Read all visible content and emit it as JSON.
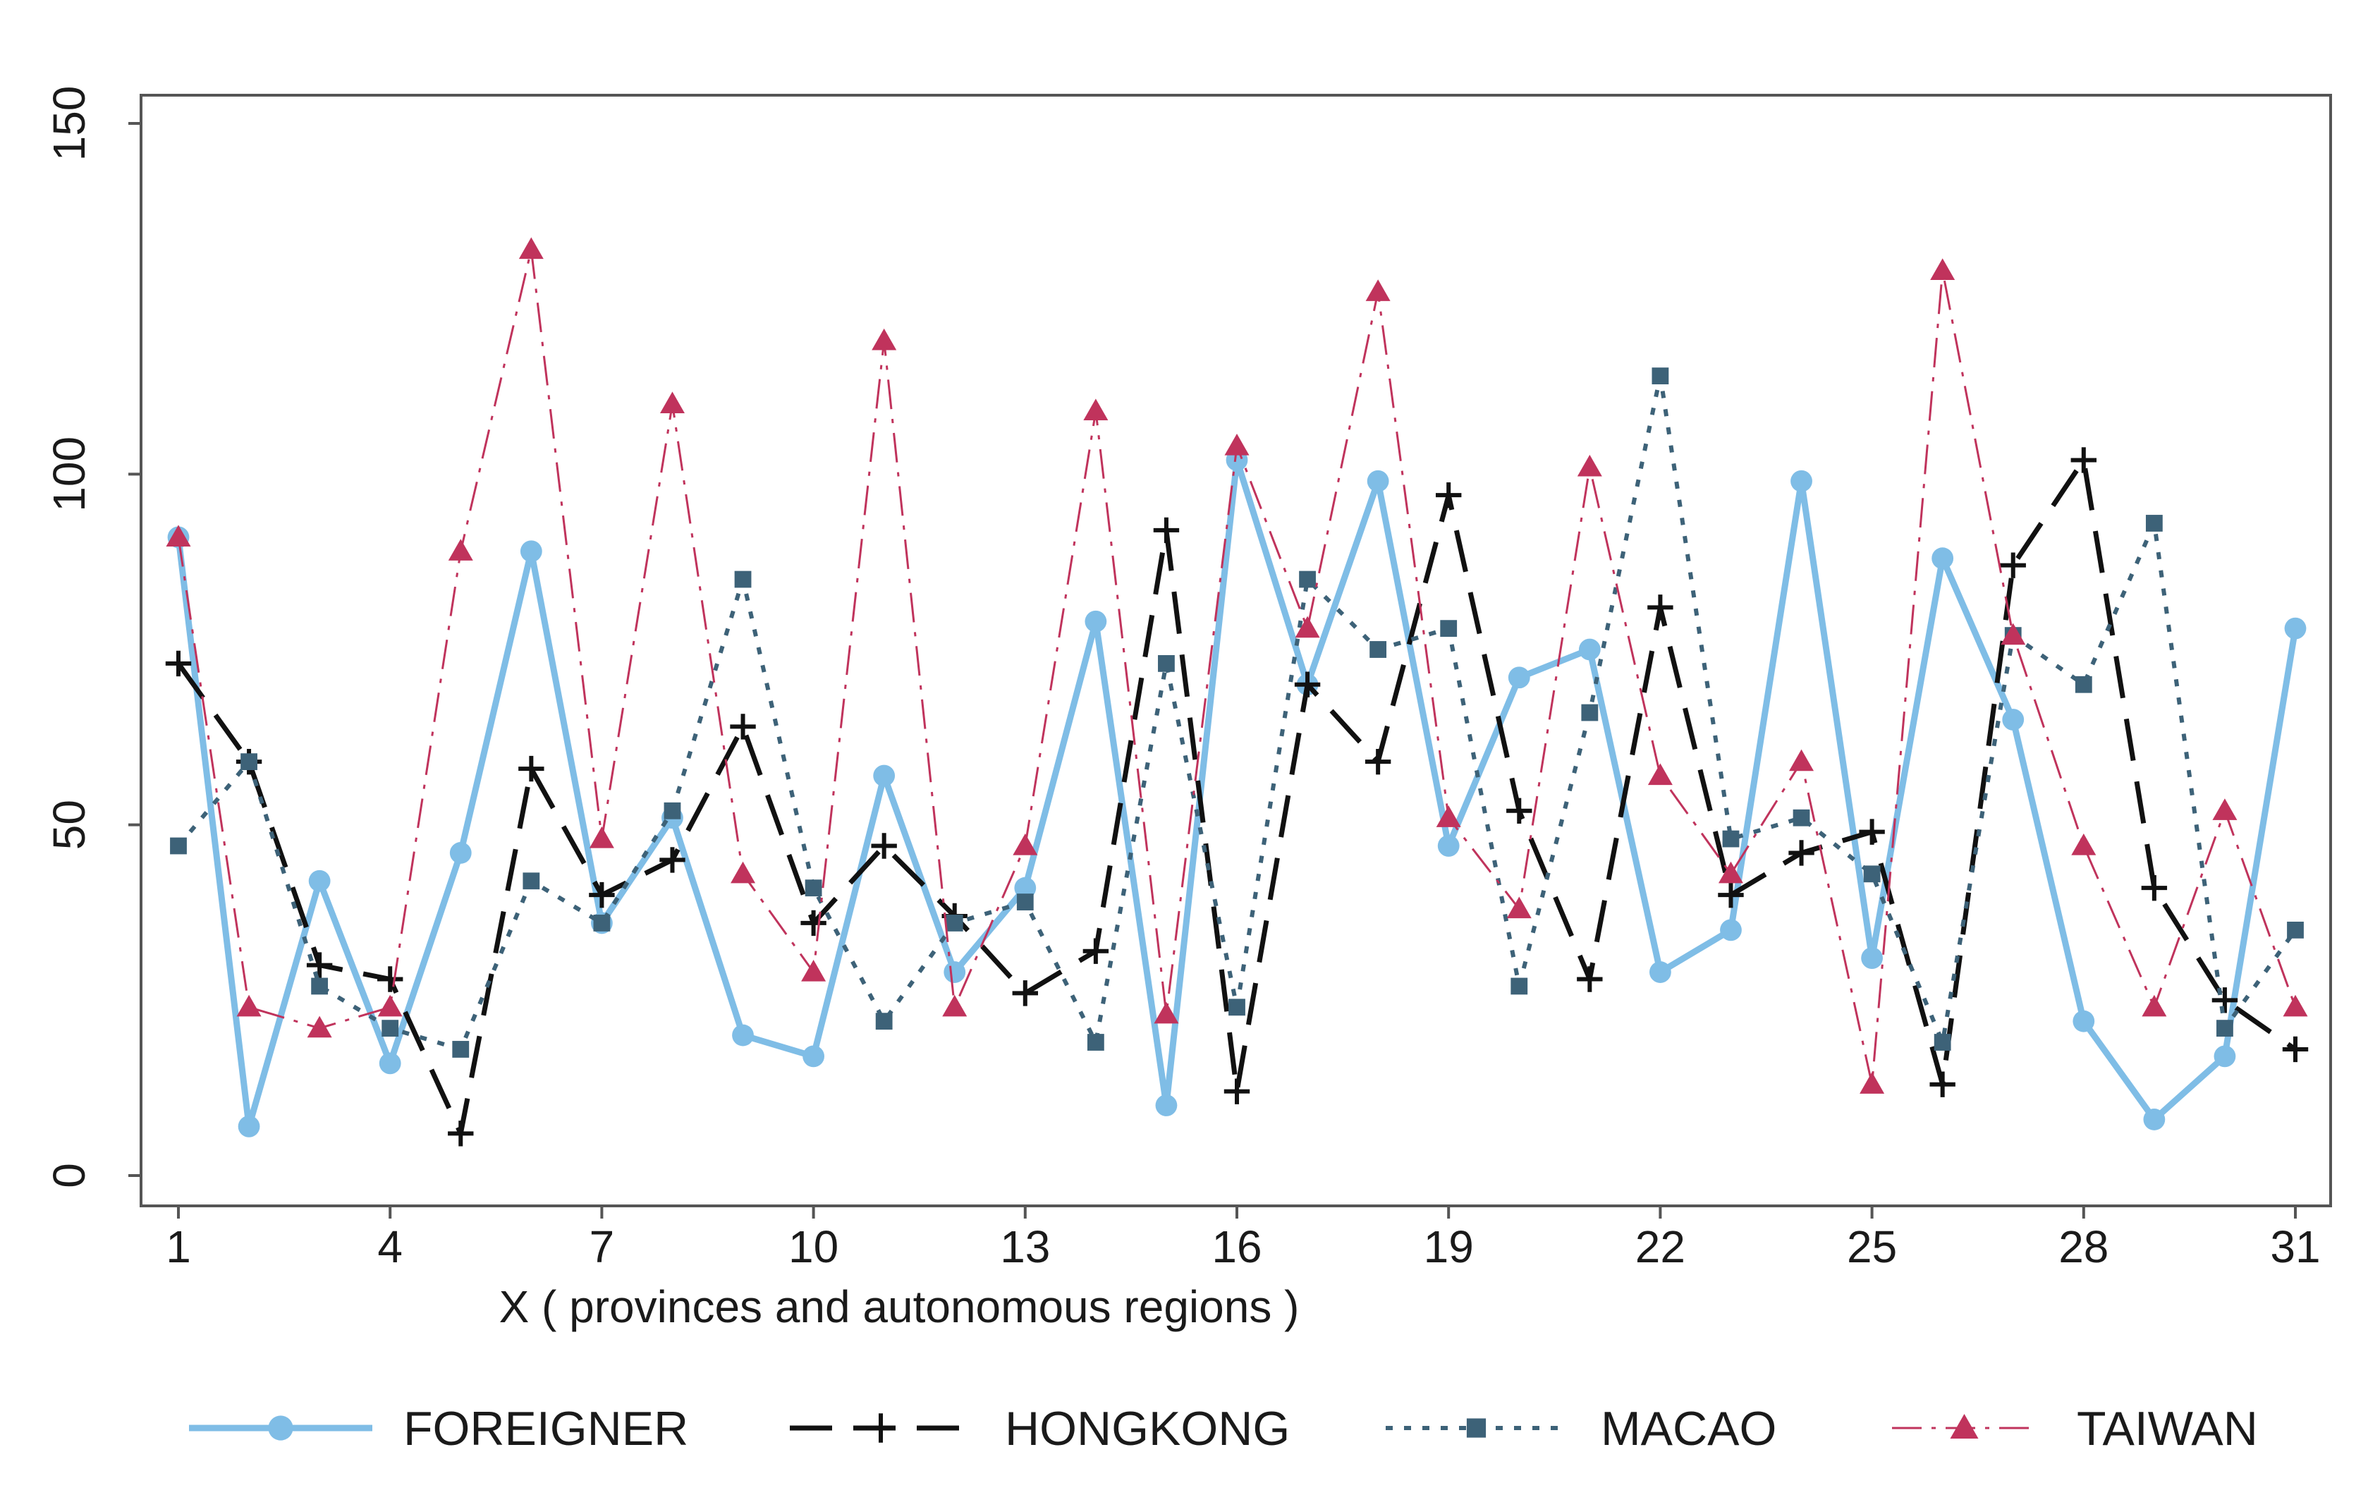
{
  "chart_data": {
    "type": "line",
    "title": "",
    "xlabel": "X ( provinces and autonomous regions )",
    "ylabel": "",
    "xlim": [
      1,
      31
    ],
    "ylim": [
      0,
      150
    ],
    "xticks": [
      1,
      4,
      7,
      10,
      13,
      16,
      19,
      22,
      25,
      28,
      31
    ],
    "yticks": [
      0,
      50,
      100,
      150
    ],
    "x": [
      1,
      2,
      3,
      4,
      5,
      6,
      7,
      8,
      9,
      10,
      11,
      12,
      13,
      14,
      15,
      16,
      17,
      18,
      19,
      20,
      21,
      22,
      23,
      24,
      25,
      26,
      27,
      28,
      29,
      30,
      31
    ],
    "legend_position": "bottom",
    "series": [
      {
        "name": "FOREIGNER",
        "color": "#7fbde6",
        "marker": "circle",
        "line_style": "solid",
        "values": [
          91,
          7,
          42,
          16,
          46,
          89,
          36,
          51,
          20,
          17,
          57,
          29,
          41,
          79,
          10,
          102,
          70,
          99,
          47,
          71,
          75,
          29,
          35,
          99,
          31,
          88,
          65,
          22,
          8,
          17,
          78
        ]
      },
      {
        "name": "HONGKONG",
        "color": "#111111",
        "marker": "plus",
        "line_style": "dashed",
        "values": [
          73,
          59,
          30,
          28,
          6,
          58,
          40,
          45,
          64,
          36,
          47,
          37,
          26,
          32,
          92,
          12,
          70,
          59,
          97,
          52,
          28,
          81,
          40,
          46,
          49,
          13,
          87,
          102,
          41,
          25,
          18
        ]
      },
      {
        "name": "MACAO",
        "color": "#3d6278",
        "marker": "square",
        "line_style": "dotted",
        "values": [
          47,
          59,
          27,
          21,
          18,
          42,
          36,
          52,
          85,
          41,
          22,
          36,
          39,
          19,
          73,
          24,
          85,
          75,
          78,
          27,
          66,
          114,
          48,
          51,
          43,
          19,
          77,
          70,
          93,
          21,
          35
        ]
      },
      {
        "name": "TAIWAN",
        "color": "#c0335c",
        "marker": "triangle",
        "line_style": "dashdot",
        "values": [
          91,
          24,
          21,
          24,
          89,
          132,
          48,
          110,
          43,
          29,
          119,
          24,
          47,
          109,
          23,
          104,
          78,
          126,
          51,
          38,
          101,
          57,
          43,
          59,
          13,
          129,
          77,
          47,
          24,
          52,
          24
        ]
      }
    ]
  }
}
